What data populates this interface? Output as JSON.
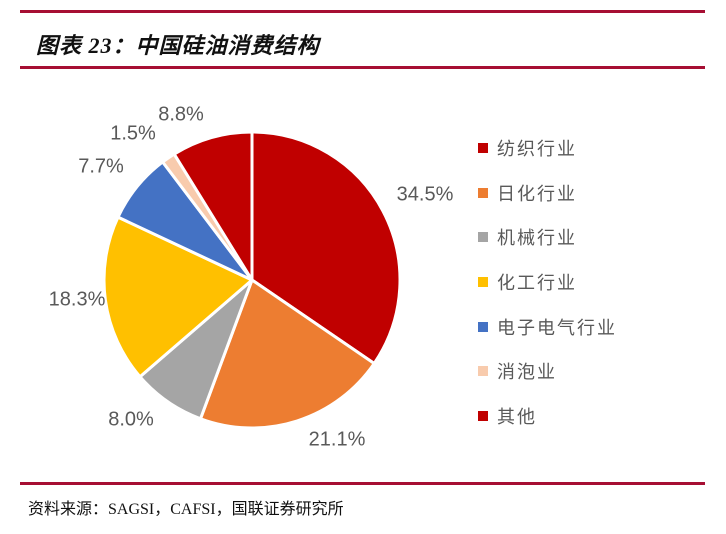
{
  "header": {
    "title": "图表 23：中国硅油消费结构"
  },
  "footer": {
    "source_text": "资料来源：SAGSI，CAFSI，国联证券研究所"
  },
  "colors": {
    "rule_line": "#A60E33",
    "label_text": "#595959",
    "title_text": "#111111",
    "background": "#FFFFFF",
    "slice_border": "#FFFFFF"
  },
  "chart_data": {
    "type": "pie",
    "title": "中国硅油消费结构",
    "start_angle_deg": 0,
    "direction": "clockwise",
    "legend_position": "right",
    "slices": [
      {
        "label": "纺织行业",
        "value": 34.5,
        "display": "34.5%",
        "color": "#C00000"
      },
      {
        "label": "日化行业",
        "value": 21.1,
        "display": "21.1%",
        "color": "#ED7D31"
      },
      {
        "label": "机械行业",
        "value": 8.0,
        "display": "8.0%",
        "color": "#A5A5A5"
      },
      {
        "label": "化工行业",
        "value": 18.3,
        "display": "18.3%",
        "color": "#FFC000"
      },
      {
        "label": "电子电气行业",
        "value": 7.7,
        "display": "7.7%",
        "color": "#4472C4"
      },
      {
        "label": "消泡业",
        "value": 1.5,
        "display": "1.5%",
        "color": "#F8CBAD"
      },
      {
        "label": "其他",
        "value": 8.8,
        "display": "8.8%",
        "color": "#C00000"
      }
    ]
  }
}
